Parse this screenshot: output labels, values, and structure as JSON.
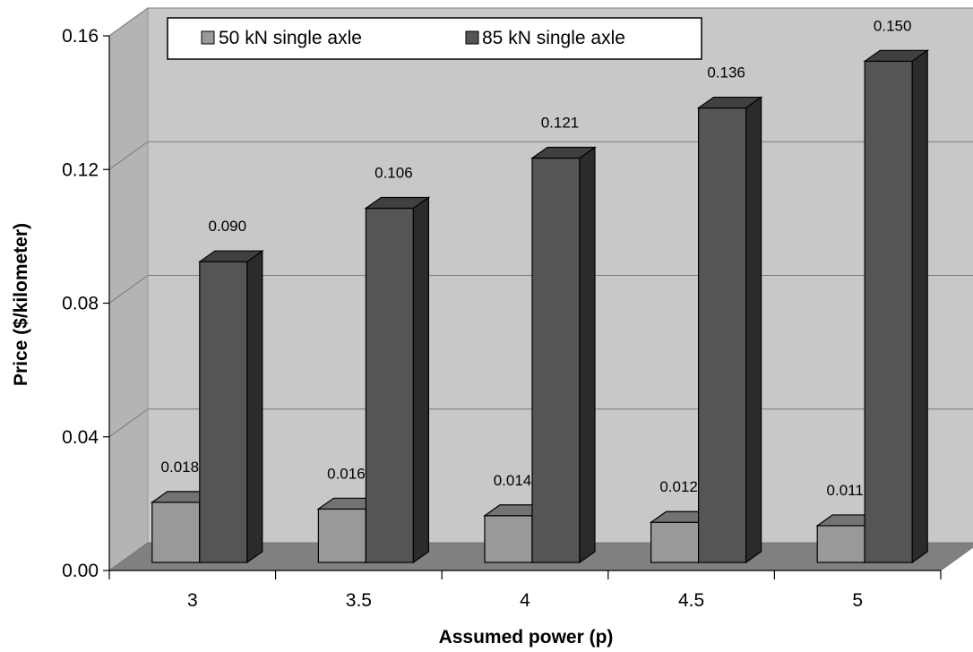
{
  "chart_data": {
    "type": "bar",
    "categories": [
      "3",
      "3.5",
      "4",
      "4.5",
      "5"
    ],
    "series": [
      {
        "name": "50 kN single axle",
        "values": [
          0.018,
          0.016,
          0.014,
          0.012,
          0.011
        ],
        "labels": [
          "0.018",
          "0.016",
          "0.014",
          "0.012",
          "0.011"
        ],
        "color": "#999999"
      },
      {
        "name": "85 kN single axle",
        "values": [
          0.09,
          0.106,
          0.121,
          0.136,
          0.15
        ],
        "labels": [
          "0.090",
          "0.106",
          "0.121",
          "0.136",
          "0.150"
        ],
        "color": "#555555"
      }
    ],
    "xlabel": "Assumed power (p)",
    "ylabel": "Price ($/kilometer)",
    "ylim": [
      0,
      0.16
    ],
    "yticks": [
      "0.00",
      "0.04",
      "0.08",
      "0.12",
      "0.16"
    ],
    "grid": true,
    "legend": "top-left",
    "style": "3d-clustered-column"
  }
}
